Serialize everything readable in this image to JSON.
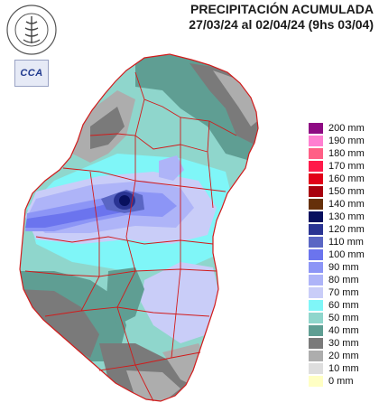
{
  "header": {
    "title": "PRECIPITACIÓN ACUMULADA",
    "subtitle": "27/03/24 al 02/04/24 (9hs 03/04)"
  },
  "logos": {
    "bolsa_ring_text": "BOLSA DE CEREALES · DE ENTRE RIOS",
    "cca_label": "CCA"
  },
  "legend": {
    "items": [
      {
        "label": "200 mm",
        "color": "#8e0a83"
      },
      {
        "label": "190 mm",
        "color": "#ff7fd1"
      },
      {
        "label": "180 mm",
        "color": "#ff5f86"
      },
      {
        "label": "170 mm",
        "color": "#ff1a4a"
      },
      {
        "label": "160 mm",
        "color": "#e10018"
      },
      {
        "label": "150 mm",
        "color": "#a8000e"
      },
      {
        "label": "140 mm",
        "color": "#66300a"
      },
      {
        "label": "130 mm",
        "color": "#08105e"
      },
      {
        "label": "120 mm",
        "color": "#2a3493"
      },
      {
        "label": "110 mm",
        "color": "#5a66c4"
      },
      {
        "label": "100 mm",
        "color": "#6b74ee"
      },
      {
        "label": "90 mm",
        "color": "#8c95f6"
      },
      {
        "label": "80 mm",
        "color": "#aeb4f8"
      },
      {
        "label": "70 mm",
        "color": "#c9cdf8"
      },
      {
        "label": "60 mm",
        "color": "#7ff6f8"
      },
      {
        "label": "50 mm",
        "color": "#8fd6cc"
      },
      {
        "label": "40 mm",
        "color": "#5f9e93"
      },
      {
        "label": "30 mm",
        "color": "#7a7a7a"
      },
      {
        "label": "20 mm",
        "color": "#adadad"
      },
      {
        "label": "10 mm",
        "color": "#dedede"
      },
      {
        "label": "0 mm",
        "color": "#ffffc4"
      }
    ]
  },
  "map": {
    "border_color": "#d11b1b"
  }
}
